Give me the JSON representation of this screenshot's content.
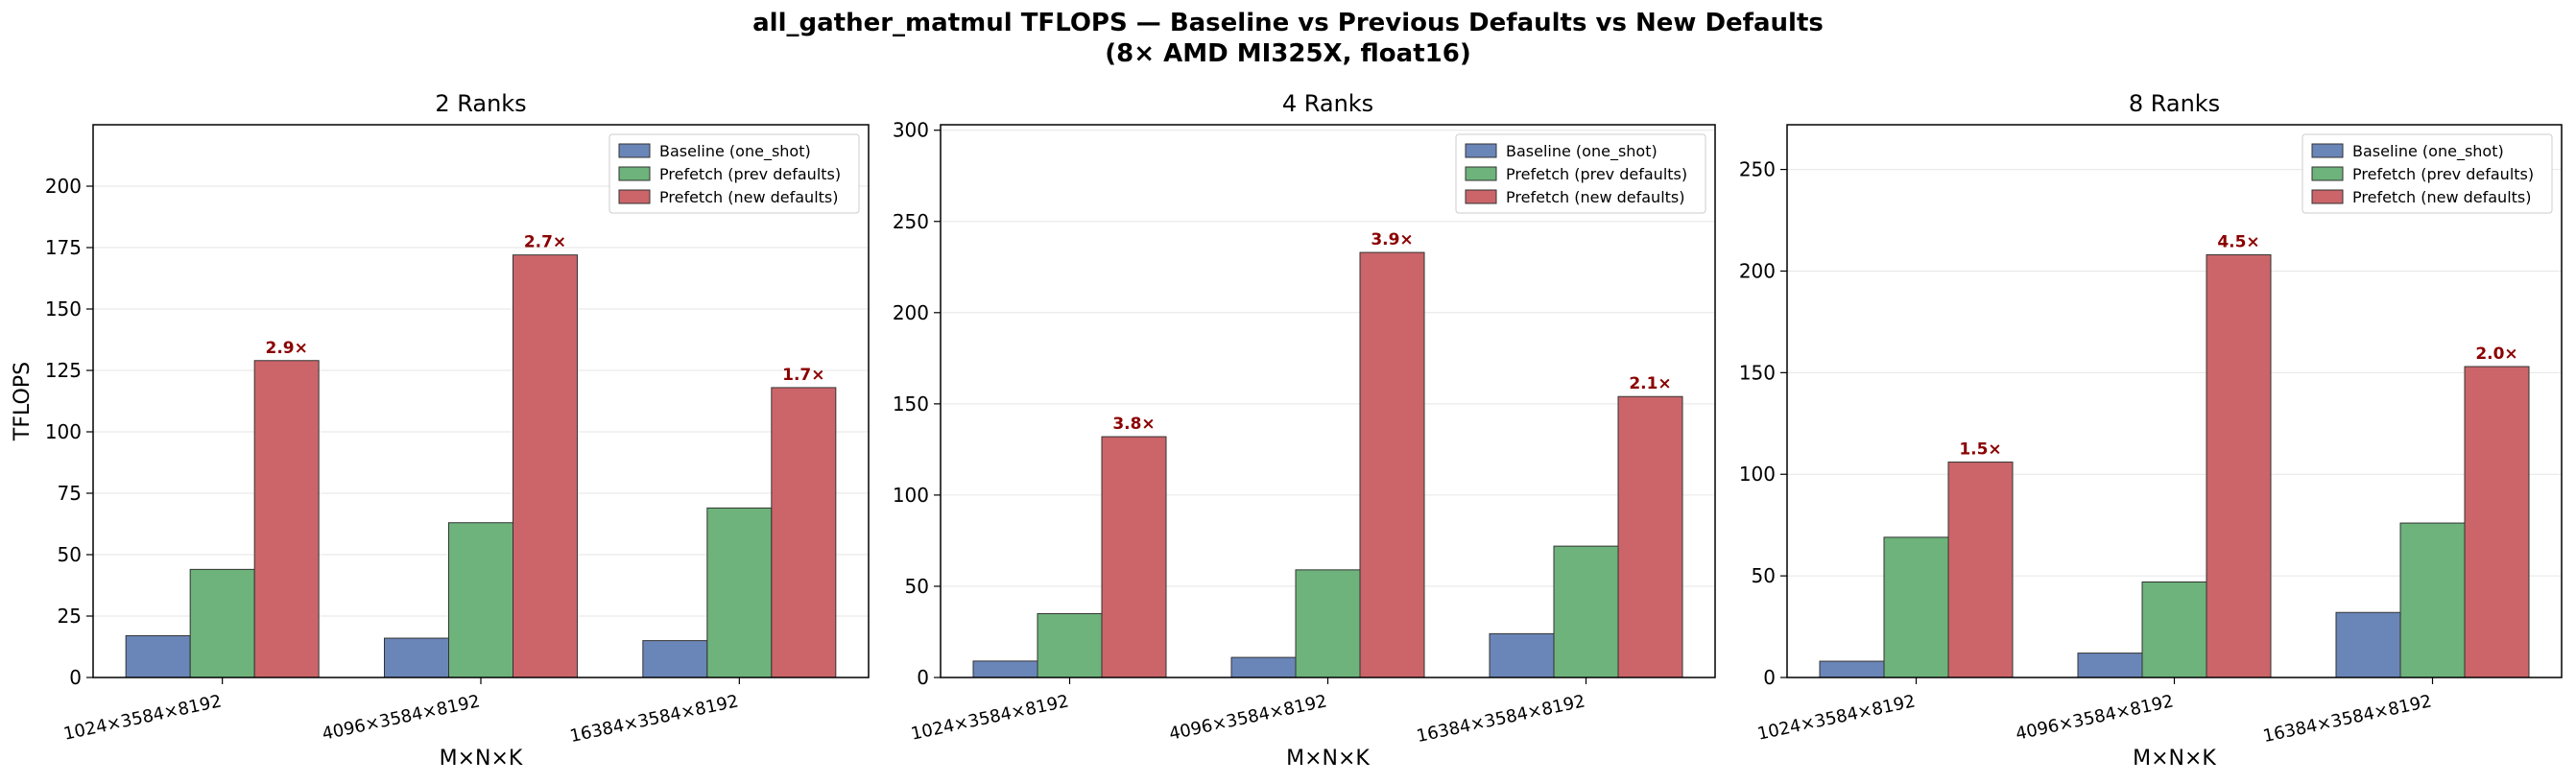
{
  "figure": {
    "title_line1": "all_gather_matmul TFLOPS — Baseline vs Previous Defaults vs New Defaults",
    "title_line2": "(8× AMD MI325X, float16)"
  },
  "colors": {
    "baseline": "#6a86b8",
    "prev": "#6db37b",
    "new": "#cb6569",
    "label": "#8b0000",
    "grid": "#e6e6e6"
  },
  "chart_data": [
    {
      "type": "bar",
      "title": "2 Ranks",
      "xlabel": "M×N×K",
      "ylabel": "TFLOPS",
      "ylim": [
        0,
        225
      ],
      "yticks": [
        0,
        25,
        50,
        75,
        100,
        125,
        150,
        175,
        200
      ],
      "grid": "y",
      "legend": "top-right",
      "categories": [
        "1024×3584×8192",
        "4096×3584×8192",
        "16384×3584×8192"
      ],
      "series": [
        {
          "name": "Baseline (one_shot)",
          "key": "baseline",
          "values": [
            17,
            16,
            15
          ]
        },
        {
          "name": "Prefetch (prev defaults)",
          "key": "prev",
          "values": [
            44,
            63,
            69
          ]
        },
        {
          "name": "Prefetch (new defaults)",
          "key": "new",
          "values": [
            129,
            172,
            118
          ]
        }
      ],
      "annotations": [
        "2.9×",
        "2.7×",
        "1.7×"
      ]
    },
    {
      "type": "bar",
      "title": "4 Ranks",
      "xlabel": "M×N×K",
      "ylabel": "",
      "ylim": [
        0,
        303
      ],
      "yticks": [
        0,
        50,
        100,
        150,
        200,
        250,
        300
      ],
      "grid": "y",
      "legend": "top-right",
      "categories": [
        "1024×3584×8192",
        "4096×3584×8192",
        "16384×3584×8192"
      ],
      "series": [
        {
          "name": "Baseline (one_shot)",
          "key": "baseline",
          "values": [
            9,
            11,
            24
          ]
        },
        {
          "name": "Prefetch (prev defaults)",
          "key": "prev",
          "values": [
            35,
            59,
            72
          ]
        },
        {
          "name": "Prefetch (new defaults)",
          "key": "new",
          "values": [
            132,
            233,
            154
          ]
        }
      ],
      "annotations": [
        "3.8×",
        "3.9×",
        "2.1×"
      ]
    },
    {
      "type": "bar",
      "title": "8 Ranks",
      "xlabel": "M×N×K",
      "ylabel": "",
      "ylim": [
        0,
        272
      ],
      "yticks": [
        0,
        50,
        100,
        150,
        200,
        250
      ],
      "grid": "y",
      "legend": "top-right",
      "categories": [
        "1024×3584×8192",
        "4096×3584×8192",
        "16384×3584×8192"
      ],
      "series": [
        {
          "name": "Baseline (one_shot)",
          "key": "baseline",
          "values": [
            8,
            12,
            32
          ]
        },
        {
          "name": "Prefetch (prev defaults)",
          "key": "prev",
          "values": [
            69,
            47,
            76
          ]
        },
        {
          "name": "Prefetch (new defaults)",
          "key": "new",
          "values": [
            106,
            208,
            153
          ]
        }
      ],
      "annotations": [
        "1.5×",
        "4.5×",
        "2.0×"
      ]
    }
  ]
}
